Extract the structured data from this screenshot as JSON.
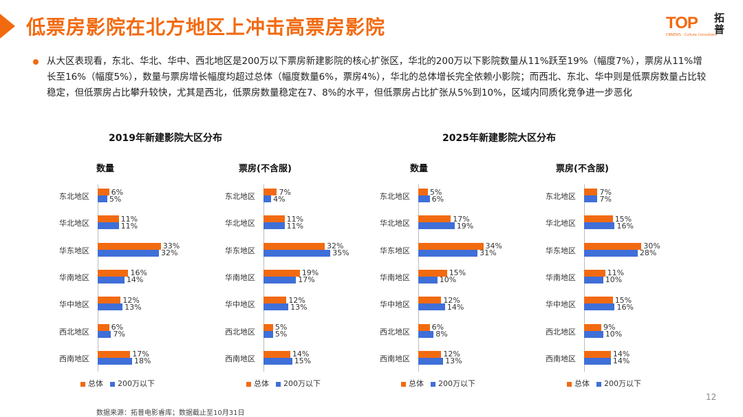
{
  "page": {
    "title": "低票房影院在北方地区上冲击高票房影院",
    "summary": "从大区表现看，东北、华北、华中、西北地区是200万以下票房新建影院的核心扩张区，华北的200万以下影院数量从11%跃至19%（幅度7%），票房从11%增长至16%（幅度5%），数量与票房增长幅度均超过总体（幅度数量6%，票房4%），华北的总体增长完全依赖小影院；而西北、东北、华中则是低票房数量占比较稳定，但低票房占比攀升较快，尤其是西北，低票房数量稳定在7、8%的水平，但低票房占比扩张从5%到10%，区域内同质化竞争进一步恶化",
    "page_number": "12",
    "source": "数据来源：拓普电影睿库；数据截止至10月31日"
  },
  "logo": {
    "main": "TOP",
    "sub": "CBNEWS · Culture Consultant",
    "cn": "拓普"
  },
  "colors": {
    "accent": "#f26a10",
    "total": "#f26a10",
    "under": "#3f6fd8"
  },
  "groups": [
    {
      "title": "2019年新建影院大区分布"
    },
    {
      "title": "2025年新建影院大区分布"
    }
  ],
  "chart_data": [
    {
      "type": "bar",
      "orientation": "horizontal",
      "title": "数量",
      "group": "2019年新建影院大区分布",
      "categories": [
        "东北地区",
        "华北地区",
        "华东地区",
        "华南地区",
        "华中地区",
        "西北地区",
        "西南地区"
      ],
      "series": [
        {
          "name": "总体",
          "values": [
            6,
            11,
            33,
            16,
            12,
            6,
            17
          ],
          "labels": [
            "6%",
            "11%",
            "33%",
            "16%",
            "12%",
            "6%",
            "17%"
          ]
        },
        {
          "name": "200万以下",
          "values": [
            5,
            11,
            32,
            14,
            13,
            7,
            18
          ],
          "labels": [
            "5%",
            "11%",
            "32%",
            "14%",
            "13%",
            "7%",
            "18%"
          ]
        }
      ],
      "xlim": [
        0,
        35
      ]
    },
    {
      "type": "bar",
      "orientation": "horizontal",
      "title": "票房(不含服)",
      "group": "2019年新建影院大区分布",
      "categories": [
        "东北地区",
        "华北地区",
        "华东地区",
        "华南地区",
        "华中地区",
        "西北地区",
        "西南地区"
      ],
      "series": [
        {
          "name": "总体",
          "values": [
            7,
            11,
            32,
            19,
            12,
            5,
            14
          ],
          "labels": [
            "7%",
            "11%",
            "32%",
            "19%",
            "12%",
            "5%",
            "14%"
          ]
        },
        {
          "name": "200万以下",
          "values": [
            4,
            11,
            35,
            17,
            13,
            5,
            15
          ],
          "labels": [
            "4%",
            "11%",
            "35%",
            "17%",
            "13%",
            "5%",
            "15%"
          ]
        }
      ],
      "xlim": [
        0,
        35
      ]
    },
    {
      "type": "bar",
      "orientation": "horizontal",
      "title": "数量",
      "group": "2025年新建影院大区分布",
      "categories": [
        "东北地区",
        "华北地区",
        "华东地区",
        "华南地区",
        "华中地区",
        "西北地区",
        "西南地区"
      ],
      "series": [
        {
          "name": "总体",
          "values": [
            5,
            17,
            34,
            15,
            12,
            6,
            12
          ],
          "labels": [
            "5%",
            "17%",
            "34%",
            "15%",
            "12%",
            "6%",
            "12%"
          ]
        },
        {
          "name": "200万以下",
          "values": [
            6,
            19,
            31,
            10,
            14,
            8,
            13
          ],
          "labels": [
            "6%",
            "19%",
            "31%",
            "10%",
            "14%",
            "8%",
            "13%"
          ]
        }
      ],
      "xlim": [
        0,
        35
      ]
    },
    {
      "type": "bar",
      "orientation": "horizontal",
      "title": "票房(不含服)",
      "group": "2025年新建影院大区分布",
      "categories": [
        "东北地区",
        "华北地区",
        "华东地区",
        "华南地区",
        "华中地区",
        "西北地区",
        "西南地区"
      ],
      "series": [
        {
          "name": "总体",
          "values": [
            7,
            15,
            30,
            11,
            15,
            9,
            14
          ],
          "labels": [
            "7%",
            "15%",
            "30%",
            "11%",
            "15%",
            "9%",
            "14%"
          ]
        },
        {
          "name": "200万以下",
          "values": [
            7,
            16,
            28,
            10,
            16,
            10,
            14
          ],
          "labels": [
            "7%",
            "16%",
            "28%",
            "10%",
            "16%",
            "10%",
            "14%"
          ]
        }
      ],
      "xlim": [
        0,
        35
      ]
    }
  ]
}
